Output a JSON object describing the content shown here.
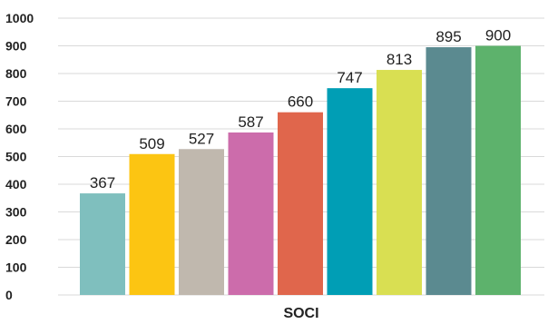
{
  "chart_data": {
    "type": "bar",
    "categories": [
      "",
      "",
      "",
      "",
      "",
      "",
      "",
      "",
      ""
    ],
    "values": [
      367,
      509,
      527,
      587,
      660,
      747,
      813,
      895,
      900
    ],
    "data_labels": [
      "367",
      "509",
      "527",
      "587",
      "660",
      "747",
      "813",
      "895",
      "900"
    ],
    "colors": [
      "#7fbfbe",
      "#fcc512",
      "#c0b8ae",
      "#cc6cab",
      "#e0664c",
      "#009eb5",
      "#d9df52",
      "#5b8a90",
      "#5db26c"
    ],
    "title": "",
    "xlabel": "SOCI",
    "ylabel": "",
    "ylim": [
      0,
      1000
    ],
    "y_ticks": [
      0,
      100,
      200,
      300,
      400,
      500,
      600,
      700,
      800,
      900,
      1000
    ],
    "y_tick_labels": [
      "0",
      "100",
      "200",
      "300",
      "400",
      "500",
      "600",
      "700",
      "800",
      "900",
      "1000"
    ],
    "grid": true,
    "legend": "none"
  }
}
